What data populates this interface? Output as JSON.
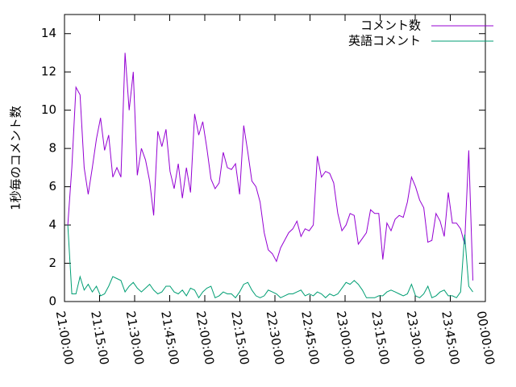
{
  "chart_data": {
    "type": "line",
    "y_label": "1秒毎のコメント数",
    "x": [
      1.4,
      3.15,
      4.9,
      6.65,
      8.4,
      10.15,
      11.9,
      13.65,
      15.4,
      17.15,
      18.9,
      20.65,
      22.4,
      24.15,
      25.9,
      27.65,
      29.4,
      31.15,
      32.9,
      34.65,
      36.4,
      38.15,
      39.9,
      41.65,
      43.4,
      45.15,
      46.9,
      48.65,
      50.4,
      52.15,
      53.9,
      55.65,
      57.4,
      59.15,
      60.9,
      62.65,
      64.4,
      66.15,
      67.9,
      69.65,
      71.4,
      73.15,
      74.9,
      76.65,
      78.4,
      80.15,
      81.9,
      83.65,
      85.4,
      87.15,
      88.9,
      90.65,
      92.4,
      94.15,
      95.9,
      97.65,
      99.4,
      101.15,
      102.9,
      104.65,
      106.4,
      108.15,
      109.9,
      111.65,
      113.4,
      115.15,
      116.9,
      118.65,
      120.4,
      122.15,
      123.9,
      125.65,
      127.4,
      129.15,
      130.9,
      132.65,
      134.4,
      136.15,
      137.9,
      139.65,
      141.4,
      143.15,
      144.9,
      146.65,
      148.4,
      150.15,
      151.9,
      153.65,
      155.4,
      157.15,
      158.9,
      160.65,
      162.4,
      164.15,
      165.9,
      167.65,
      169.4,
      171.15,
      172.9,
      174.65
    ],
    "series": [
      {
        "name": "コメント数",
        "color": "#9400d3",
        "values": [
          4,
          7,
          11.2,
          10.8,
          7,
          5.6,
          7,
          8.5,
          9.6,
          7.9,
          8.7,
          6.5,
          7,
          6.5,
          13,
          10,
          12,
          6.6,
          8,
          7.4,
          6.3,
          4.5,
          8.9,
          8.1,
          9,
          6.8,
          5.9,
          7.2,
          5.4,
          7,
          5.7,
          9.8,
          8.7,
          9.4,
          8,
          6.4,
          5.9,
          6.2,
          7.8,
          7,
          6.9,
          7.2,
          5.6,
          9.2,
          7.8,
          6.3,
          6,
          5.2,
          3.6,
          2.7,
          2.5,
          2.1,
          2.8,
          3.2,
          3.6,
          3.8,
          4.2,
          3.4,
          3.8,
          3.7,
          4,
          7.6,
          6.5,
          6.8,
          6.7,
          6.2,
          4.6,
          3.7,
          4,
          4.6,
          4.5,
          3,
          3.3,
          3.6,
          4.8,
          4.6,
          4.6,
          2.2,
          4.1,
          3.7,
          4.3,
          4.5,
          4.4,
          5.2,
          6.5,
          6,
          5.3,
          4.9,
          3.1,
          3.2,
          4.6,
          4.2,
          3.4,
          5.7,
          4.1,
          4.1,
          3.8,
          3,
          7.9,
          1.1
        ]
      },
      {
        "name": "英語コメント",
        "color": "#009e73",
        "values": [
          4,
          0.4,
          0.4,
          1.3,
          0.6,
          0.9,
          0.5,
          0.8,
          0.3,
          0.4,
          0.8,
          1.3,
          1.2,
          1.1,
          0.5,
          0.8,
          1,
          0.7,
          0.5,
          0.7,
          0.9,
          0.6,
          0.4,
          0.5,
          0.8,
          0.8,
          0.5,
          0.4,
          0.6,
          0.3,
          0.7,
          0.6,
          0.2,
          0.5,
          0.7,
          0.8,
          0.2,
          0.3,
          0.5,
          0.4,
          0.4,
          0.2,
          0.5,
          0.9,
          1,
          0.6,
          0.3,
          0.2,
          0.3,
          0.6,
          0.5,
          0.4,
          0.2,
          0.3,
          0.4,
          0.4,
          0.5,
          0.6,
          0.3,
          0.4,
          0.3,
          0.5,
          0.4,
          0.2,
          0.4,
          0.3,
          0.4,
          0.7,
          1,
          0.9,
          1.1,
          0.9,
          0.6,
          0.2,
          0.2,
          0.2,
          0.3,
          0.3,
          0.5,
          0.6,
          0.5,
          0.4,
          0.3,
          0.4,
          0.9,
          0.3,
          0.2,
          0.4,
          0.8,
          0.2,
          0.3,
          0.5,
          0.6,
          0.3,
          0.3,
          0.2,
          0.5,
          3.5,
          0.8,
          0.5
        ]
      }
    ],
    "xlim": [
      0,
      180
    ],
    "xticks": [
      {
        "value": 0,
        "label": "21:00:00"
      },
      {
        "value": 15,
        "label": "21:15:00"
      },
      {
        "value": 30,
        "label": "21:30:00"
      },
      {
        "value": 45,
        "label": "21:45:00"
      },
      {
        "value": 60,
        "label": "22:00:00"
      },
      {
        "value": 75,
        "label": "22:15:00"
      },
      {
        "value": 90,
        "label": "22:30:00"
      },
      {
        "value": 105,
        "label": "22:45:00"
      },
      {
        "value": 120,
        "label": "23:00:00"
      },
      {
        "value": 135,
        "label": "23:15:00"
      },
      {
        "value": 150,
        "label": "23:30:00"
      },
      {
        "value": 165,
        "label": "23:45:00"
      },
      {
        "value": 180,
        "label": "00:00:00"
      }
    ],
    "ylim": [
      0,
      15
    ],
    "yticks": [
      0,
      2,
      4,
      6,
      8,
      10,
      12,
      14
    ],
    "legend": "top-right",
    "grid": false
  }
}
